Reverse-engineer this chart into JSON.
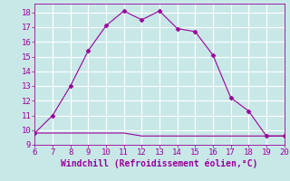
{
  "xlabel": "Windchill (Refroidissement éolien,°C)",
  "x_main": [
    6,
    7,
    8,
    9,
    10,
    11,
    12,
    13,
    14,
    15,
    16,
    17,
    18,
    19,
    20
  ],
  "y_main": [
    9.8,
    11.0,
    13.0,
    15.4,
    17.1,
    18.1,
    17.5,
    18.1,
    16.9,
    16.7,
    15.1,
    12.2,
    11.3,
    9.6,
    9.6
  ],
  "x_flat": [
    6,
    7,
    8,
    9,
    10,
    11,
    12,
    13,
    14,
    15,
    16,
    17,
    18,
    19,
    20
  ],
  "y_flat": [
    9.8,
    9.8,
    9.8,
    9.8,
    9.8,
    9.8,
    9.6,
    9.6,
    9.6,
    9.6,
    9.6,
    9.6,
    9.6,
    9.6,
    9.6
  ],
  "line_color": "#990099",
  "bg_color": "#c8e8e8",
  "grid_color": "#ffffff",
  "xlim": [
    6,
    20
  ],
  "ylim": [
    9,
    18.6
  ],
  "xticks": [
    6,
    7,
    8,
    9,
    10,
    11,
    12,
    13,
    14,
    15,
    16,
    17,
    18,
    19,
    20
  ],
  "yticks": [
    9,
    10,
    11,
    12,
    13,
    14,
    15,
    16,
    17,
    18
  ],
  "xlabel_fontsize": 7.0,
  "tick_fontsize": 6.5,
  "markersize": 2.5
}
